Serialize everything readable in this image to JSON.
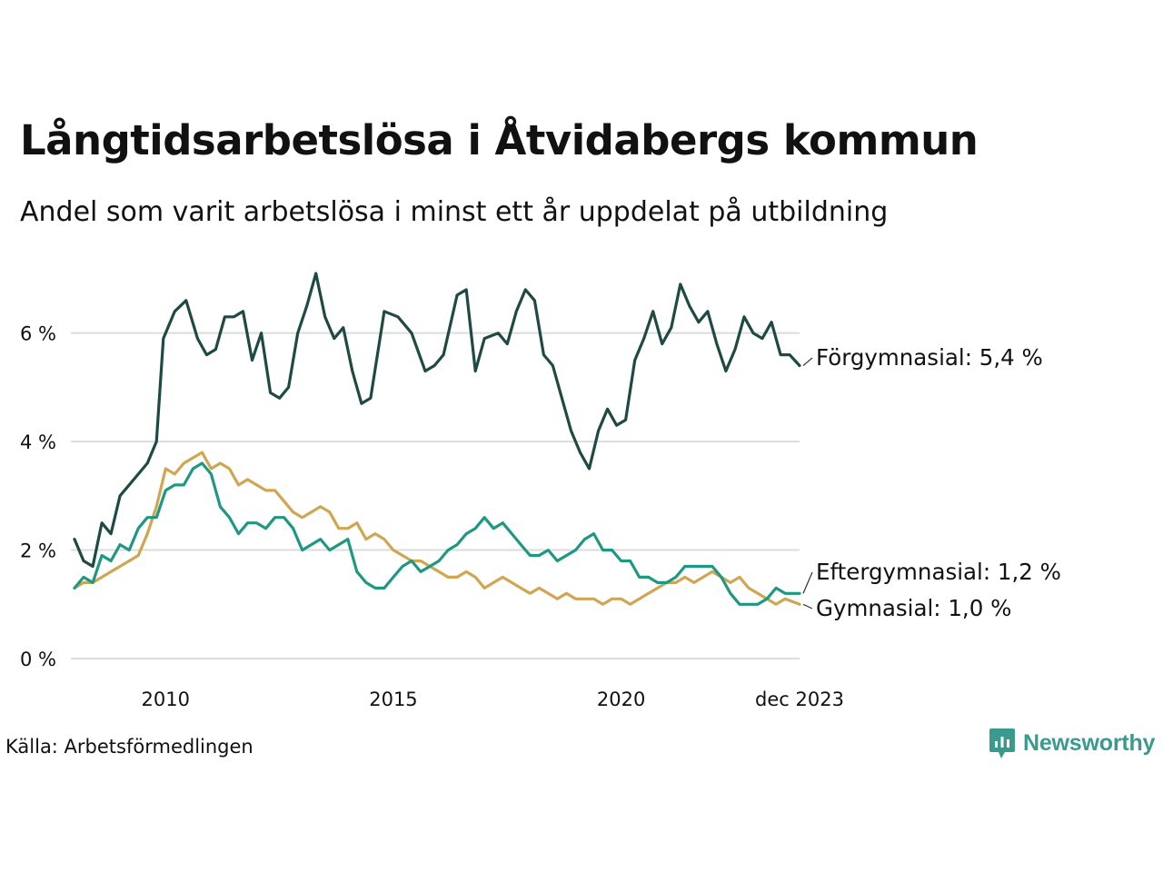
{
  "title": "Långtidsarbetslösa i Åtvidabergs kommun",
  "subtitle": "Andel som varit arbetslösa i minst ett år uppdelat på utbildning",
  "source": "Källa: Arbetsförmedlingen",
  "brand": {
    "name": "Newsworthy",
    "color": "#3a9a8c"
  },
  "chart_data": {
    "type": "line",
    "title": "Långtidsarbetslösa i Åtvidabergs kommun",
    "xlabel": "",
    "ylabel": "",
    "ylim": [
      0,
      7.2
    ],
    "xlim": [
      2008.0,
      2023.917
    ],
    "yticks": [
      0,
      2,
      4,
      6
    ],
    "ytick_labels": [
      "0 %",
      "2 %",
      "4 %",
      "6 %"
    ],
    "xticks": [
      2010,
      2015,
      2020,
      2023.917
    ],
    "xtick_labels": [
      "2010",
      "2015",
      "2020",
      "dec 2023"
    ],
    "grid": true,
    "series": [
      {
        "name": "Förgymnasial",
        "end_label": "Förgymnasial: 5,4 %",
        "color": "#1f4a44",
        "x": [
          2008.0,
          2008.2,
          2008.4,
          2008.6,
          2008.8,
          2009.0,
          2009.3,
          2009.6,
          2009.8,
          2009.95,
          2010.2,
          2010.45,
          2010.7,
          2010.9,
          2011.1,
          2011.3,
          2011.5,
          2011.7,
          2011.9,
          2012.1,
          2012.3,
          2012.5,
          2012.7,
          2012.9,
          2013.1,
          2013.3,
          2013.5,
          2013.7,
          2013.9,
          2014.1,
          2014.3,
          2014.5,
          2014.8,
          2015.1,
          2015.4,
          2015.7,
          2015.9,
          2016.1,
          2016.4,
          2016.6,
          2016.8,
          2017.0,
          2017.3,
          2017.5,
          2017.7,
          2017.9,
          2018.1,
          2018.3,
          2018.5,
          2018.7,
          2018.9,
          2019.1,
          2019.3,
          2019.5,
          2019.7,
          2019.9,
          2020.1,
          2020.3,
          2020.5,
          2020.7,
          2020.9,
          2021.1,
          2021.3,
          2021.5,
          2021.7,
          2021.9,
          2022.1,
          2022.3,
          2022.5,
          2022.7,
          2022.9,
          2023.1,
          2023.3,
          2023.5,
          2023.7,
          2023.917
        ],
        "y": [
          2.2,
          1.8,
          1.7,
          2.5,
          2.3,
          3.0,
          3.3,
          3.6,
          4.0,
          5.9,
          6.4,
          6.6,
          5.9,
          5.6,
          5.7,
          6.3,
          6.3,
          6.4,
          5.5,
          6.0,
          4.9,
          4.8,
          5.0,
          6.0,
          6.5,
          7.1,
          6.3,
          5.9,
          6.1,
          5.3,
          4.7,
          4.8,
          6.4,
          6.3,
          6.0,
          5.3,
          5.4,
          5.6,
          6.7,
          6.8,
          5.3,
          5.9,
          6.0,
          5.8,
          6.4,
          6.8,
          6.6,
          5.6,
          5.4,
          4.8,
          4.2,
          3.8,
          3.5,
          4.2,
          4.6,
          4.3,
          4.4,
          5.5,
          5.9,
          6.4,
          5.8,
          6.1,
          6.9,
          6.5,
          6.2,
          6.4,
          5.8,
          5.3,
          5.7,
          6.3,
          6.0,
          5.9,
          6.2,
          5.6,
          5.6,
          5.4
        ]
      },
      {
        "name": "Eftergymnasial",
        "end_label": "Eftergymnasial: 1,2 %",
        "color": "#1f9883",
        "x": [
          2008.0,
          2008.2,
          2008.4,
          2008.6,
          2008.8,
          2009.0,
          2009.2,
          2009.4,
          2009.6,
          2009.8,
          2010.0,
          2010.2,
          2010.4,
          2010.6,
          2010.8,
          2011.0,
          2011.2,
          2011.4,
          2011.6,
          2011.8,
          2012.0,
          2012.2,
          2012.4,
          2012.6,
          2012.8,
          2013.0,
          2013.2,
          2013.4,
          2013.6,
          2013.8,
          2014.0,
          2014.2,
          2014.4,
          2014.6,
          2014.8,
          2015.0,
          2015.2,
          2015.4,
          2015.6,
          2015.8,
          2016.0,
          2016.2,
          2016.4,
          2016.6,
          2016.8,
          2017.0,
          2017.2,
          2017.4,
          2017.6,
          2017.8,
          2018.0,
          2018.2,
          2018.4,
          2018.6,
          2018.8,
          2019.0,
          2019.2,
          2019.4,
          2019.6,
          2019.8,
          2020.0,
          2020.2,
          2020.4,
          2020.6,
          2020.8,
          2021.0,
          2021.2,
          2021.4,
          2021.6,
          2021.8,
          2022.0,
          2022.2,
          2022.4,
          2022.6,
          2022.8,
          2023.0,
          2023.2,
          2023.4,
          2023.6,
          2023.917
        ],
        "y": [
          1.3,
          1.5,
          1.4,
          1.9,
          1.8,
          2.1,
          2.0,
          2.4,
          2.6,
          2.6,
          3.1,
          3.2,
          3.2,
          3.5,
          3.6,
          3.4,
          2.8,
          2.6,
          2.3,
          2.5,
          2.5,
          2.4,
          2.6,
          2.6,
          2.4,
          2.0,
          2.1,
          2.2,
          2.0,
          2.1,
          2.2,
          1.6,
          1.4,
          1.3,
          1.3,
          1.5,
          1.7,
          1.8,
          1.6,
          1.7,
          1.8,
          2.0,
          2.1,
          2.3,
          2.4,
          2.6,
          2.4,
          2.5,
          2.3,
          2.1,
          1.9,
          1.9,
          2.0,
          1.8,
          1.9,
          2.0,
          2.2,
          2.3,
          2.0,
          2.0,
          1.8,
          1.8,
          1.5,
          1.5,
          1.4,
          1.4,
          1.5,
          1.7,
          1.7,
          1.7,
          1.7,
          1.5,
          1.2,
          1.0,
          1.0,
          1.0,
          1.1,
          1.3,
          1.2,
          1.2
        ]
      },
      {
        "name": "Gymnasial",
        "end_label": "Gymnasial: 1,0 %",
        "color": "#d0a652",
        "x": [
          2008.0,
          2008.2,
          2008.4,
          2008.6,
          2008.8,
          2009.0,
          2009.2,
          2009.4,
          2009.6,
          2009.8,
          2010.0,
          2010.2,
          2010.4,
          2010.6,
          2010.8,
          2011.0,
          2011.2,
          2011.4,
          2011.6,
          2011.8,
          2012.0,
          2012.2,
          2012.4,
          2012.6,
          2012.8,
          2013.0,
          2013.2,
          2013.4,
          2013.6,
          2013.8,
          2014.0,
          2014.2,
          2014.4,
          2014.6,
          2014.8,
          2015.0,
          2015.2,
          2015.4,
          2015.6,
          2015.8,
          2016.0,
          2016.2,
          2016.4,
          2016.6,
          2016.8,
          2017.0,
          2017.2,
          2017.4,
          2017.6,
          2017.8,
          2018.0,
          2018.2,
          2018.4,
          2018.6,
          2018.8,
          2019.0,
          2019.2,
          2019.4,
          2019.6,
          2019.8,
          2020.0,
          2020.2,
          2020.4,
          2020.6,
          2020.8,
          2021.0,
          2021.2,
          2021.4,
          2021.6,
          2021.8,
          2022.0,
          2022.2,
          2022.4,
          2022.6,
          2022.8,
          2023.0,
          2023.2,
          2023.4,
          2023.6,
          2023.917
        ],
        "y": [
          1.3,
          1.4,
          1.4,
          1.5,
          1.6,
          1.7,
          1.8,
          1.9,
          2.3,
          2.8,
          3.5,
          3.4,
          3.6,
          3.7,
          3.8,
          3.5,
          3.6,
          3.5,
          3.2,
          3.3,
          3.2,
          3.1,
          3.1,
          2.9,
          2.7,
          2.6,
          2.7,
          2.8,
          2.7,
          2.4,
          2.4,
          2.5,
          2.2,
          2.3,
          2.2,
          2.0,
          1.9,
          1.8,
          1.8,
          1.7,
          1.6,
          1.5,
          1.5,
          1.6,
          1.5,
          1.3,
          1.4,
          1.5,
          1.4,
          1.3,
          1.2,
          1.3,
          1.2,
          1.1,
          1.2,
          1.1,
          1.1,
          1.1,
          1.0,
          1.1,
          1.1,
          1.0,
          1.1,
          1.2,
          1.3,
          1.4,
          1.4,
          1.5,
          1.4,
          1.5,
          1.6,
          1.5,
          1.4,
          1.5,
          1.3,
          1.2,
          1.1,
          1.0,
          1.1,
          1.0
        ]
      }
    ]
  }
}
